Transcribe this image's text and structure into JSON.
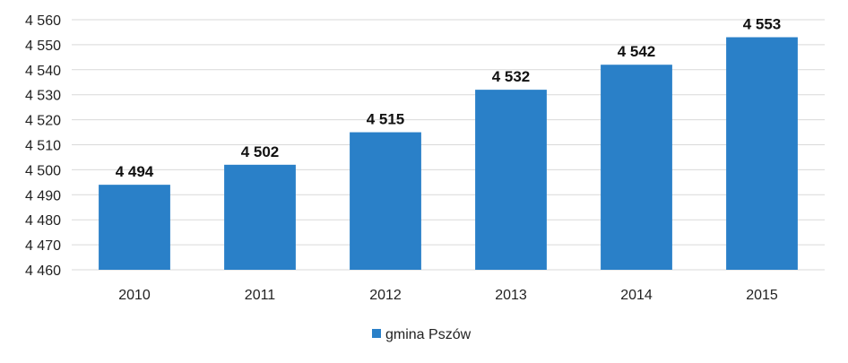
{
  "chart_data": {
    "type": "bar",
    "categories": [
      "2010",
      "2011",
      "2012",
      "2013",
      "2014",
      "2015"
    ],
    "series": [
      {
        "name": "gmina Pszów",
        "values": [
          4494,
          4502,
          4515,
          4532,
          4542,
          4553
        ]
      }
    ],
    "data_labels": [
      "4 494",
      "4 502",
      "4 515",
      "4 532",
      "4 542",
      "4 553"
    ],
    "y_ticks": [
      4460,
      4470,
      4480,
      4490,
      4500,
      4510,
      4520,
      4530,
      4540,
      4550,
      4560
    ],
    "y_tick_labels": [
      "4 460",
      "4 470",
      "4 480",
      "4 490",
      "4 500",
      "4 510",
      "4 520",
      "4 530",
      "4 540",
      "4 550",
      "4 560"
    ],
    "ylim": [
      4460,
      4560
    ],
    "grid": true,
    "legend_position": "bottom-center",
    "bar_color": "#2a80c8",
    "gridline_color": "#d9d9d9"
  }
}
